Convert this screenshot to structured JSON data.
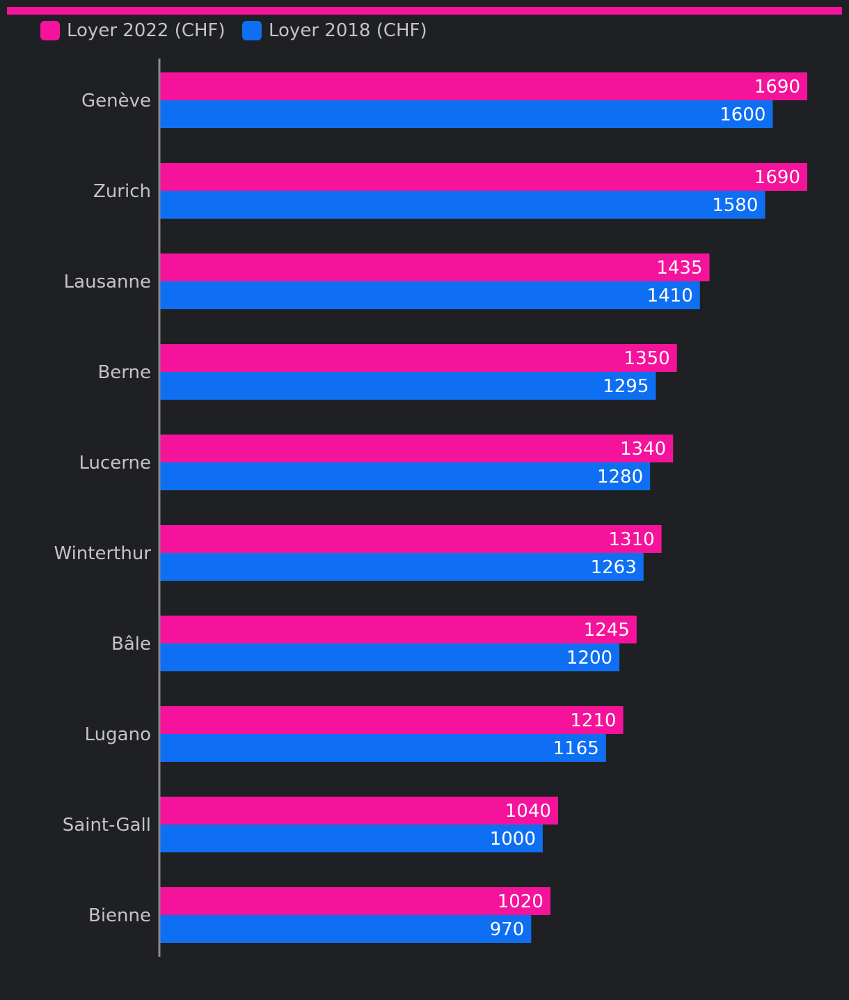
{
  "colors": {
    "background": "#1f2023",
    "series_2022": "#f5139b",
    "series_2018": "#0f6ff2",
    "axis": "#8a8a8a",
    "category_text": "#c4c4c4",
    "legend_text": "#c4c4c4",
    "value_text": "#ffffff"
  },
  "chart_data": {
    "type": "bar",
    "orientation": "horizontal",
    "title": "",
    "xlabel": "",
    "ylabel": "",
    "xlim": [
      0,
      1700
    ],
    "grid": false,
    "legend_position": "top-left",
    "categories": [
      "Genève",
      "Zurich",
      "Lausanne",
      "Berne",
      "Lucerne",
      "Winterthur",
      "Bâle",
      "Lugano",
      "Saint-Gall",
      "Bienne"
    ],
    "series": [
      {
        "name": "Loyer 2022 (CHF)",
        "color_key": "series_2022",
        "values": [
          1690,
          1690,
          1435,
          1350,
          1340,
          1310,
          1245,
          1210,
          1040,
          1020
        ]
      },
      {
        "name": "Loyer 2018 (CHF)",
        "color_key": "series_2018",
        "values": [
          1600,
          1580,
          1410,
          1295,
          1280,
          1263,
          1200,
          1165,
          1000,
          970
        ]
      }
    ]
  }
}
